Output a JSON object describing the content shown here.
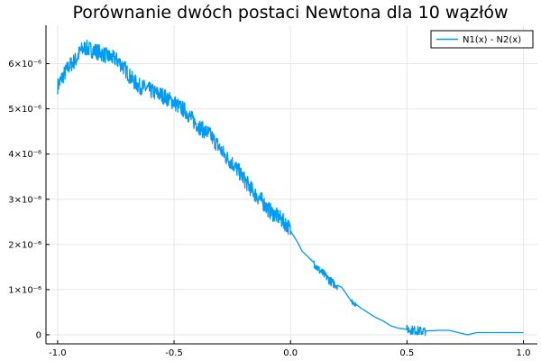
{
  "chart_data": {
    "type": "line",
    "title": "Porównanie dwóch postaci Newtona dla 10 wązłów",
    "xlabel": "",
    "ylabel": "",
    "xlim": [
      -1.05,
      1.06
    ],
    "ylim": [
      -2e-07,
      6.85e-06
    ],
    "x_ticks": [
      -1.0,
      -0.5,
      0.0,
      0.5,
      1.0
    ],
    "x_tick_labels": [
      "-1.0",
      "-0.5",
      "0.0",
      "0.5",
      "1.0"
    ],
    "y_ticks": [
      0,
      1e-06,
      2e-06,
      3e-06,
      4e-06,
      5e-06,
      6e-06
    ],
    "y_tick_labels": [
      "0",
      "1×10⁻⁶",
      "2×10⁻⁶",
      "3×10⁻⁶",
      "4×10⁻⁶",
      "5×10⁻⁶",
      "6×10⁻⁶"
    ],
    "grid": true,
    "legend_position": "top-right",
    "series": [
      {
        "name": "N1(x) - N2(x)",
        "color": "#009af9",
        "x": [
          -1.0,
          -0.98,
          -0.95,
          -0.92,
          -0.9,
          -0.88,
          -0.85,
          -0.82,
          -0.8,
          -0.78,
          -0.75,
          -0.72,
          -0.7,
          -0.68,
          -0.65,
          -0.62,
          -0.6,
          -0.58,
          -0.55,
          -0.52,
          -0.5,
          -0.48,
          -0.45,
          -0.42,
          -0.4,
          -0.38,
          -0.35,
          -0.32,
          -0.3,
          -0.28,
          -0.25,
          -0.22,
          -0.2,
          -0.18,
          -0.15,
          -0.12,
          -0.1,
          -0.08,
          -0.05,
          -0.03,
          -0.01,
          0.0,
          0.03,
          0.05,
          0.08,
          0.1,
          0.12,
          0.15,
          0.18,
          0.2,
          0.22,
          0.24,
          0.26,
          0.28,
          0.3,
          0.33,
          0.36,
          0.4,
          0.43,
          0.46,
          0.5,
          0.53,
          0.56,
          0.6,
          0.64,
          0.68,
          0.72,
          0.76,
          0.8,
          0.85,
          0.9,
          0.95,
          1.0
        ],
        "y": [
          5.5e-06,
          5.7e-06,
          5.95e-06,
          6.1e-06,
          6.3e-06,
          6.35e-06,
          6.3e-06,
          6.25e-06,
          6.2e-06,
          6.15e-06,
          6.1e-06,
          5.95e-06,
          5.8e-06,
          5.65e-06,
          5.5e-06,
          5.45e-06,
          5.4e-06,
          5.35e-06,
          5.3e-06,
          5.2e-06,
          5.15e-06,
          5.05e-06,
          4.95e-06,
          4.75e-06,
          4.65e-06,
          4.55e-06,
          4.45e-06,
          4.25e-06,
          4.1e-06,
          3.95e-06,
          3.8e-06,
          3.6e-06,
          3.45e-06,
          3.3e-06,
          3.1e-06,
          2.95e-06,
          2.8e-06,
          2.7e-06,
          2.6e-06,
          2.5e-06,
          2.4e-06,
          2.3e-06,
          2.05e-06,
          1.85e-06,
          1.7e-06,
          1.6e-06,
          1.45e-06,
          1.3e-06,
          1.15e-06,
          1.1e-06,
          1.05e-06,
          9e-07,
          7.5e-07,
          6.8e-07,
          6e-07,
          5e-07,
          4e-07,
          3e-07,
          2e-07,
          1.5e-07,
          1.2e-07,
          1e-07,
          8e-08,
          9e-08,
          1e-07,
          1e-07,
          5e-08,
          0.0,
          5e-08,
          5e-08,
          5e-08,
          5e-08,
          5e-08
        ],
        "noise": [
          {
            "x_range": [
              -1.0,
              0.0
            ],
            "amplitude": 1.8e-07
          },
          {
            "x_range": [
              0.1,
              0.2
            ],
            "amplitude": 1e-07
          },
          {
            "x_range": [
              0.26,
              0.28
            ],
            "amplitude": 6e-08
          },
          {
            "x_range": [
              0.5,
              0.58
            ],
            "amplitude": 1e-07
          }
        ]
      }
    ]
  }
}
